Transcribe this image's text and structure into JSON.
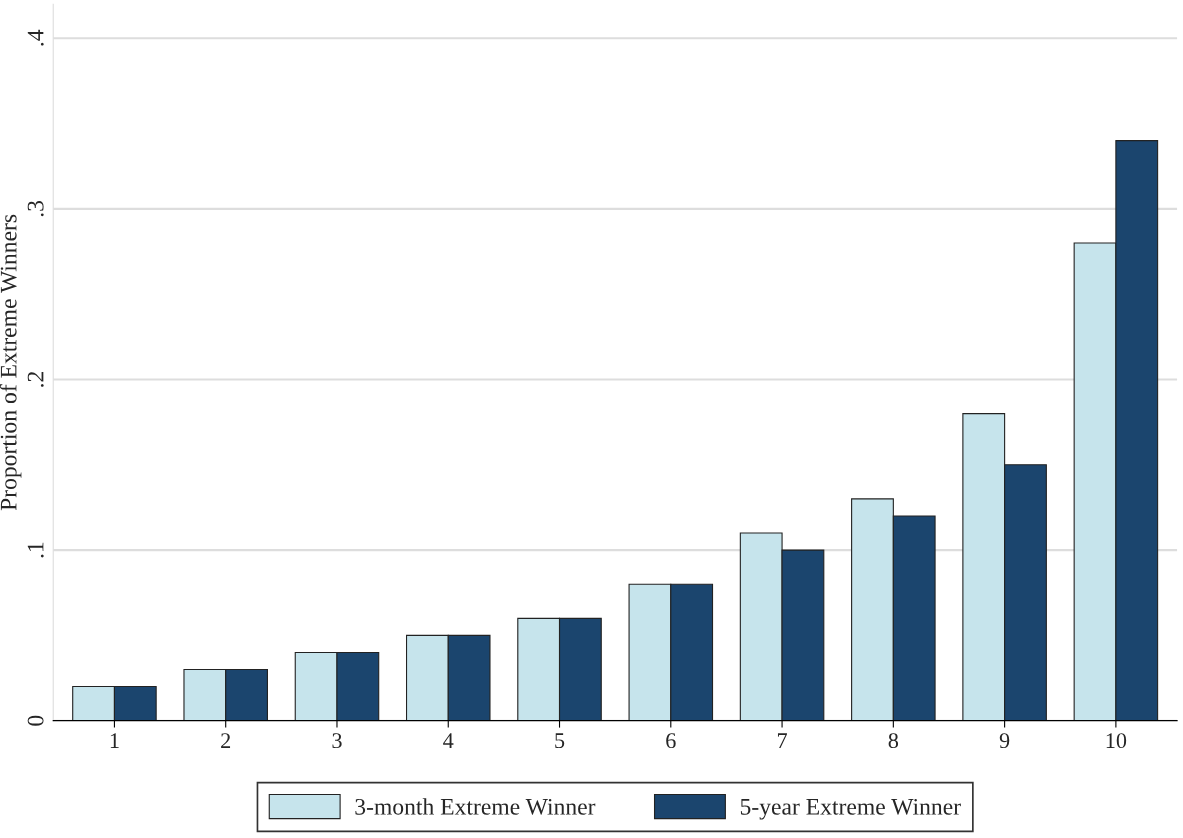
{
  "chart_data": {
    "type": "bar",
    "ylabel": "Proportion of Extreme Winners",
    "categories": [
      "1",
      "2",
      "3",
      "4",
      "5",
      "6",
      "7",
      "8",
      "9",
      "10"
    ],
    "series": [
      {
        "name": "3-month Extreme Winner",
        "color": "#c6e4ec",
        "values": [
          0.02,
          0.03,
          0.04,
          0.05,
          0.06,
          0.08,
          0.11,
          0.13,
          0.18,
          0.28
        ]
      },
      {
        "name": "5-year Extreme Winner",
        "color": "#1b456e",
        "values": [
          0.02,
          0.03,
          0.04,
          0.05,
          0.06,
          0.08,
          0.1,
          0.12,
          0.15,
          0.34
        ]
      }
    ],
    "ylim": [
      0,
      0.42
    ],
    "yticks": [
      0,
      {
        "value": 0.1,
        "label": ".1"
      },
      {
        "value": 0.2,
        "label": ".2"
      },
      {
        "value": 0.3,
        "label": ".3"
      },
      {
        "value": 0.4,
        "label": ".4"
      }
    ],
    "grid": "y",
    "legend": "bottom"
  }
}
